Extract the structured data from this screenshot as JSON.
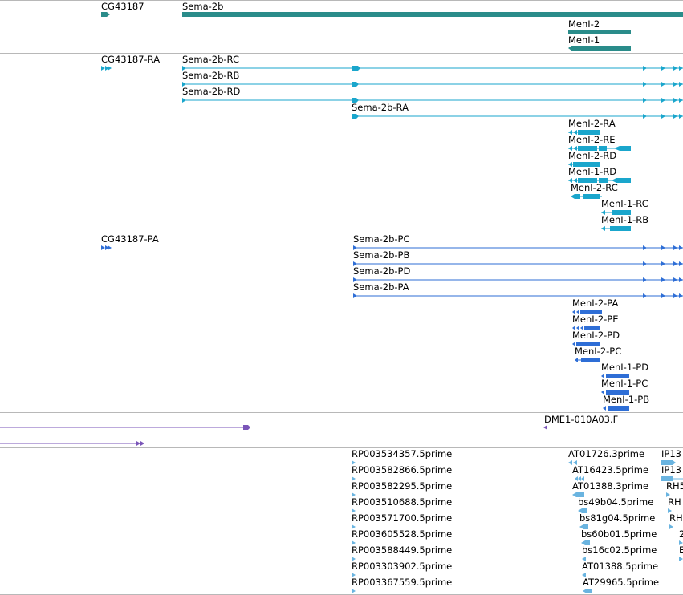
{
  "colors": {
    "gene": "#2a8c8a",
    "transcript": "#1aa6cc",
    "protein": "#2e6ed6",
    "insertion": "#7a55b8",
    "est": "#6ab4e0",
    "divider": "#b8b8b8"
  },
  "tracks": {
    "genes": {
      "labels": [
        "CG43187",
        "Sema-2b",
        "MenI-2",
        "MenI-1"
      ]
    },
    "transcripts": {
      "labels": [
        "CG43187-RA",
        "Sema-2b-RC",
        "Sema-2b-RB",
        "Sema-2b-RD",
        "Sema-2b-RA",
        "MenI-2-RA",
        "MenI-2-RE",
        "MenI-2-RD",
        "MenI-1-RD",
        "MenI-2-RC",
        "MenI-1-RC",
        "MenI-1-RB"
      ]
    },
    "proteins": {
      "labels": [
        "CG43187-PA",
        "Sema-2b-PC",
        "Sema-2b-PB",
        "Sema-2b-PD",
        "Sema-2b-PA",
        "MenI-2-PA",
        "MenI-2-PE",
        "MenI-2-PD",
        "MenI-2-PC",
        "MenI-1-PD",
        "MenI-1-PC",
        "MenI-1-PB"
      ]
    },
    "insertions": {
      "labels": [
        "DME1-010A03.F"
      ]
    },
    "ests": {
      "labels": [
        "RP003534357.5prime",
        "RP003582866.5prime",
        "RP003582295.5prime",
        "RP003510688.5prime",
        "RP003571700.5prime",
        "RP003605528.5prime",
        "RP003588449.5prime",
        "RP003303902.5prime",
        "RP003367559.5prime",
        "AT01726.3prime",
        "AT16423.5prime",
        "AT01388.3prime",
        "bs49b04.5prime",
        "bs81g04.5prime",
        "bs60b01.5prime",
        "bs16c02.5prime",
        "AT01388.5prime",
        "AT29965.5prime",
        "IP13",
        "IP13",
        "RH5",
        "RH",
        "RH",
        "2",
        "E"
      ]
    }
  }
}
